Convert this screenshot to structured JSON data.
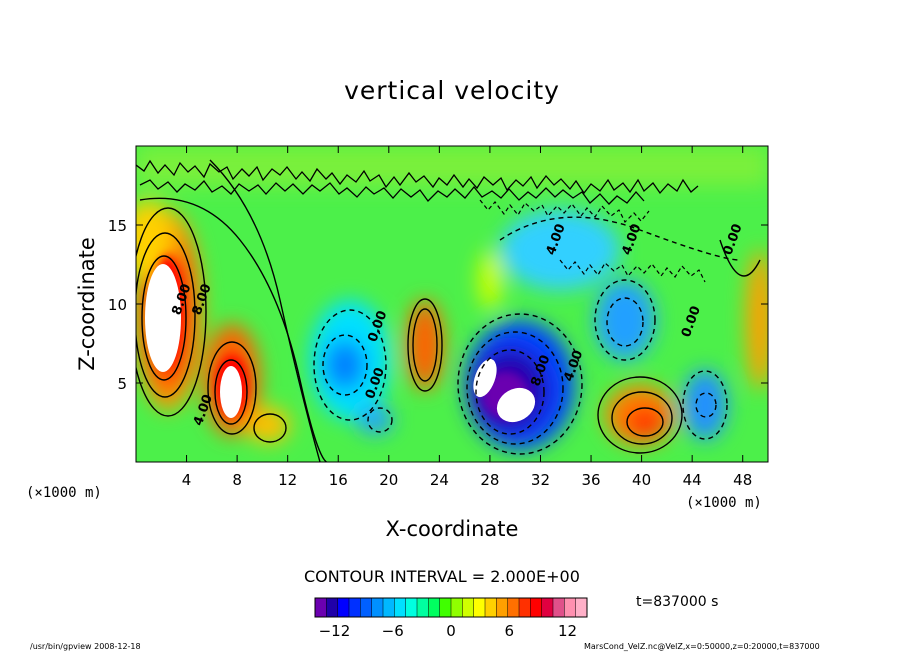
{
  "chart_data": {
    "type": "heatmap",
    "title": "vertical velocity",
    "xlabel": "X-coordinate",
    "ylabel": "Z-coordinate",
    "x_units": "(×1000 m)",
    "y_units": "(×1000 m)",
    "xlim": [
      0,
      50
    ],
    "ylim": [
      0,
      20
    ],
    "x_ticks": [
      4,
      8,
      12,
      16,
      20,
      24,
      28,
      32,
      36,
      40,
      44,
      48
    ],
    "y_ticks": [
      5,
      10,
      15
    ],
    "contour_labels": [
      {
        "text": "8.00",
        "x": 3.9,
        "y": 10.2
      },
      {
        "text": "8.00",
        "x": 5.5,
        "y": 10.2
      },
      {
        "text": "4.00",
        "x": 5.6,
        "y": 3.2
      },
      {
        "text": "0.00",
        "x": 19.4,
        "y": 8.5
      },
      {
        "text": "0.00",
        "x": 19.2,
        "y": 4.9
      },
      {
        "text": "8.00",
        "x": 32.3,
        "y": 5.7
      },
      {
        "text": "4.00",
        "x": 34.9,
        "y": 6.0
      },
      {
        "text": "4.00",
        "x": 33.5,
        "y": 14.0
      },
      {
        "text": "4.00",
        "x": 39.5,
        "y": 14.0
      },
      {
        "text": "0.00",
        "x": 44.2,
        "y": 8.8
      },
      {
        "text": "0.00",
        "x": 47.5,
        "y": 14.0
      }
    ],
    "colorbar": {
      "min": -14,
      "max": 14,
      "interval": 2,
      "ticks": [
        -12,
        -6,
        0,
        6,
        12
      ],
      "colors": [
        "#6b00b0",
        "#2000a8",
        "#0000ff",
        "#0030ff",
        "#0060ff",
        "#0090ff",
        "#00b8ff",
        "#00e0ff",
        "#00ffe0",
        "#00ffa0",
        "#00ff60",
        "#40ff00",
        "#90ff00",
        "#d0ff00",
        "#ffff00",
        "#ffd000",
        "#ffa000",
        "#ff7000",
        "#ff3000",
        "#ff0000",
        "#e00040",
        "#e0508a",
        "#ff90b0",
        "#ffb0c8"
      ]
    },
    "contour_interval": "CONTOUR INTERVAL = 2.000E+00",
    "time": "t=837000 s"
  },
  "footer": {
    "left": "/usr/bin/gpview   2008-12-18",
    "right": "MarsCond_VelZ.nc@VelZ,x=0:50000,z=0:20000,t=837000"
  }
}
